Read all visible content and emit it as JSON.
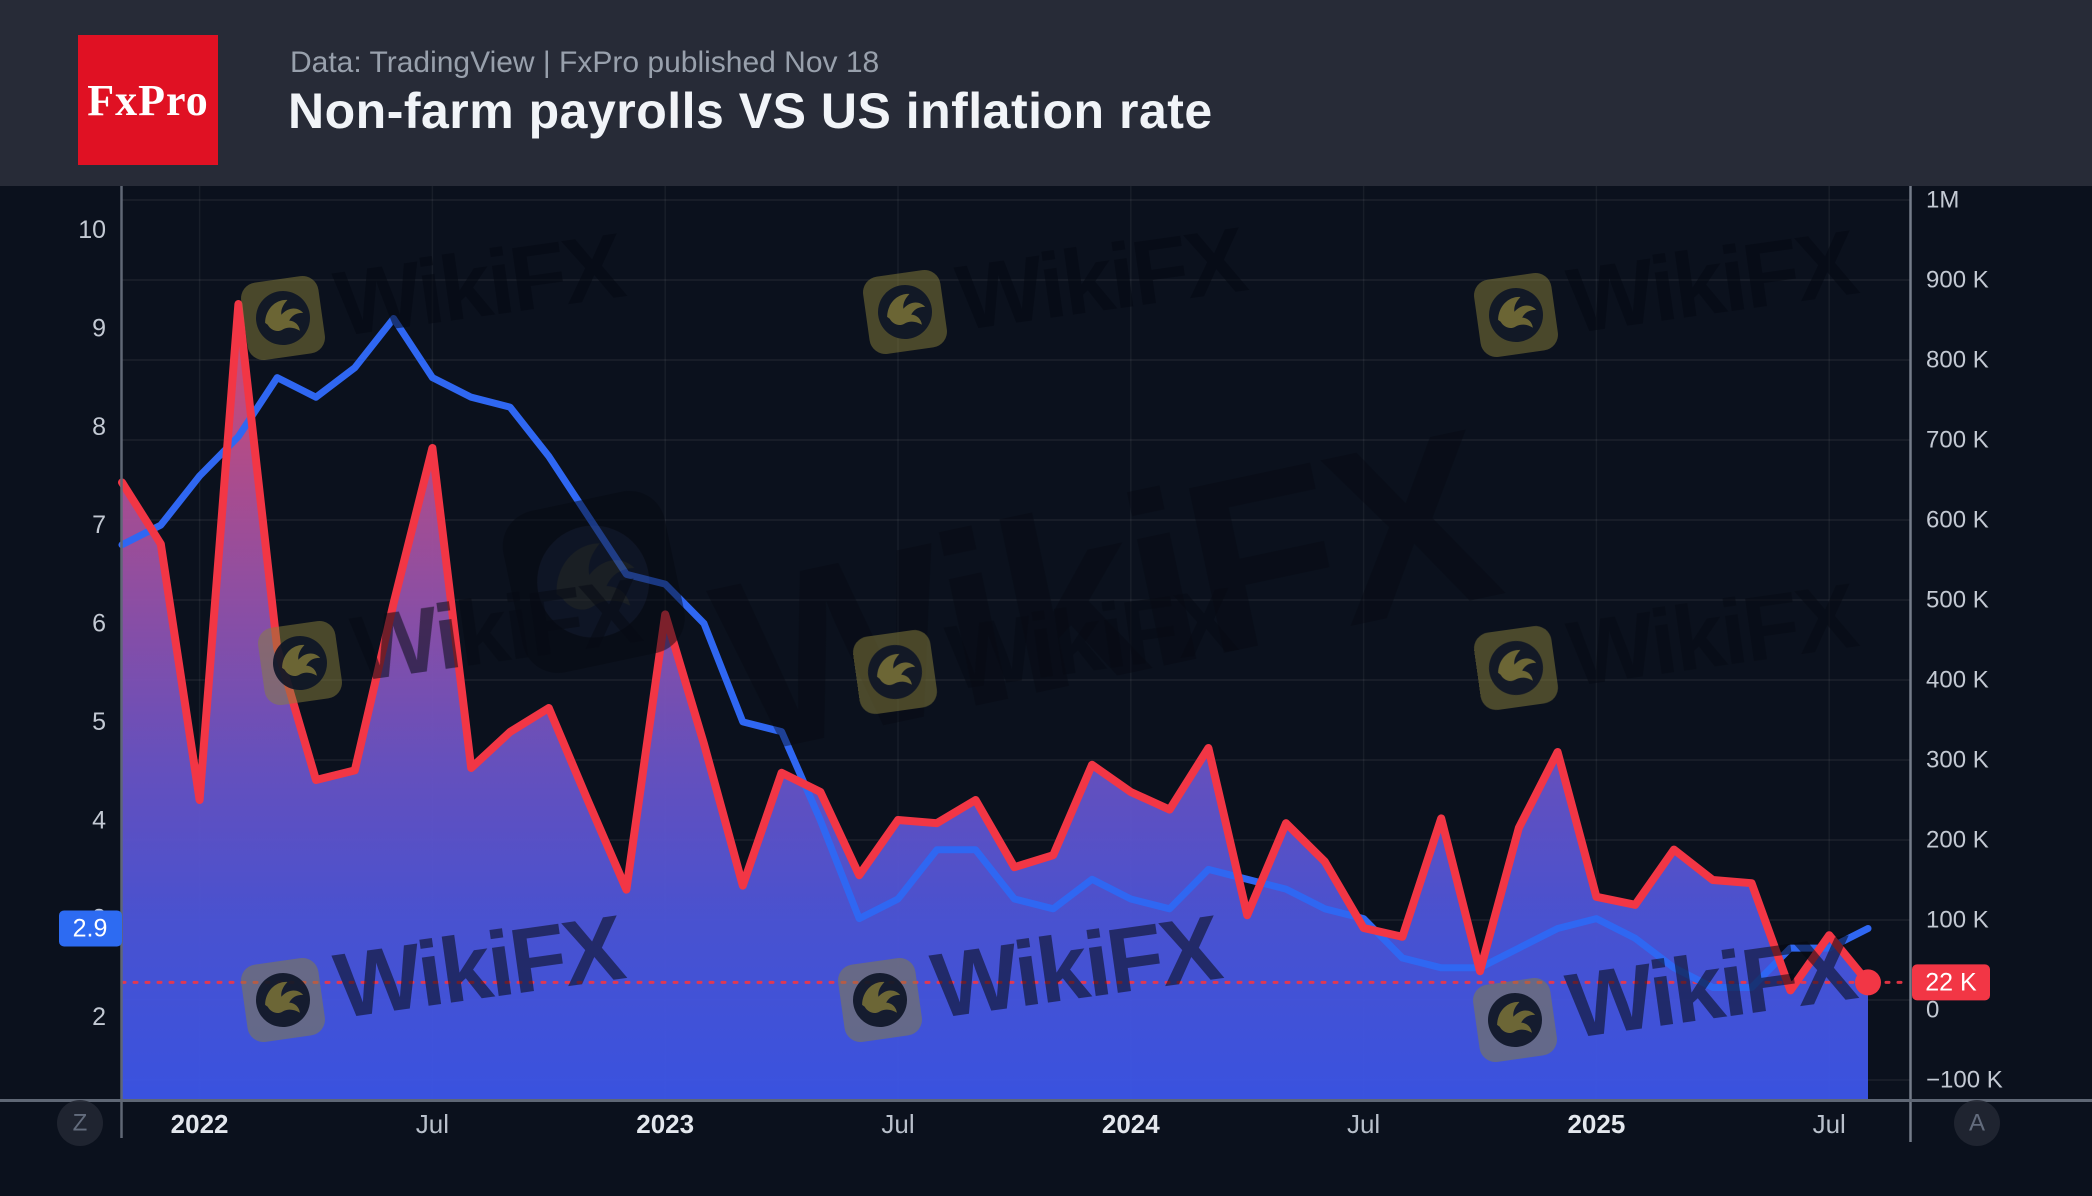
{
  "header": {
    "logo_text": "FxPro",
    "logo_color": "#e01123",
    "subtitle": "Data: TradingView | FxPro published Nov 18",
    "title": "Non-farm payrolls VS US inflation rate"
  },
  "chart_data": {
    "type": "line",
    "title": "Non-farm payrolls VS US inflation rate",
    "grid": true,
    "legend_position": "none",
    "months": [
      "Nov 2021",
      "Dec 2021",
      "Jan 2022",
      "Feb 2022",
      "Mar 2022",
      "Apr 2022",
      "May 2022",
      "Jun 2022",
      "Jul 2022",
      "Aug 2022",
      "Sep 2022",
      "Oct 2022",
      "Nov 2022",
      "Dec 2022",
      "Jan 2023",
      "Feb 2023",
      "Mar 2023",
      "Apr 2023",
      "May 2023",
      "Jun 2023",
      "Jul 2023",
      "Aug 2023",
      "Sep 2023",
      "Oct 2023",
      "Nov 2023",
      "Dec 2023",
      "Jan 2024",
      "Feb 2024",
      "Mar 2024",
      "Apr 2024",
      "May 2024",
      "Jun 2024",
      "Jul 2024",
      "Aug 2024",
      "Sep 2024",
      "Oct 2024",
      "Nov 2024",
      "Dec 2024",
      "Jan 2025",
      "Feb 2025",
      "Mar 2025",
      "Apr 2025",
      "May 2025",
      "Jun 2025",
      "Jul 2025",
      "Aug 2025"
    ],
    "series": [
      {
        "name": "US inflation rate YoY",
        "unit": "%",
        "axis": "left",
        "color": "#2f67f2",
        "style": "line",
        "values": [
          6.8,
          7.0,
          7.5,
          7.9,
          8.5,
          8.3,
          8.6,
          9.1,
          8.5,
          8.3,
          8.2,
          7.7,
          7.1,
          6.5,
          6.4,
          6.0,
          5.0,
          4.9,
          4.0,
          3.0,
          3.2,
          3.7,
          3.7,
          3.2,
          3.1,
          3.4,
          3.2,
          3.1,
          3.5,
          3.4,
          3.3,
          3.1,
          3.0,
          2.6,
          2.5,
          2.5,
          2.7,
          2.9,
          3.0,
          2.8,
          2.5,
          2.3,
          2.3,
          2.7,
          2.7,
          2.9
        ]
      },
      {
        "name": "Non-farm payrolls monthly change",
        "unit": "K",
        "axis": "right",
        "color": "#f23645",
        "style": "area",
        "values": [
          647,
          570,
          250,
          870,
          440,
          275,
          287,
          496,
          690,
          290,
          335,
          365,
          250,
          138,
          482,
          320,
          143,
          284,
          260,
          156,
          225,
          221,
          250,
          166,
          181,
          294,
          260,
          238,
          315,
          106,
          221,
          173,
          90,
          79,
          227,
          36,
          215,
          310,
          129,
          119,
          188,
          150,
          146,
          12,
          81,
          22
        ]
      }
    ],
    "x_labels": [
      {
        "label": "2022",
        "month_index": 2,
        "bold": true
      },
      {
        "label": "Jul",
        "month_index": 8,
        "bold": false
      },
      {
        "label": "2023",
        "month_index": 14,
        "bold": true
      },
      {
        "label": "Jul",
        "month_index": 20,
        "bold": false
      },
      {
        "label": "2024",
        "month_index": 26,
        "bold": true
      },
      {
        "label": "Jul",
        "month_index": 32,
        "bold": false
      },
      {
        "label": "2025",
        "month_index": 38,
        "bold": true
      },
      {
        "label": "Jul",
        "month_index": 44,
        "bold": false
      }
    ],
    "left_axis": {
      "range": [
        2,
        10
      ],
      "ticks": [
        10,
        9,
        8,
        7,
        6,
        5,
        4,
        3,
        2
      ],
      "current": {
        "label": "2.9",
        "value": 2.9,
        "badge_color": "#2d6bf2"
      }
    },
    "right_axis": {
      "range_k": [
        -100,
        1000
      ],
      "ticks": [
        {
          "label": "1M",
          "value_k": 1000
        },
        {
          "label": "900 K",
          "value_k": 900
        },
        {
          "label": "800 K",
          "value_k": 800
        },
        {
          "label": "700 K",
          "value_k": 700
        },
        {
          "label": "600 K",
          "value_k": 600
        },
        {
          "label": "500 K",
          "value_k": 500
        },
        {
          "label": "400 K",
          "value_k": 400
        },
        {
          "label": "300 K",
          "value_k": 300
        },
        {
          "label": "200 K",
          "value_k": 200
        },
        {
          "label": "100 K",
          "value_k": 100
        },
        {
          "label": "0",
          "value_k": 0
        },
        {
          "label": "−100 K",
          "value_k": -100
        }
      ],
      "current": {
        "label": "22 K",
        "value_k": 22,
        "badge_color": "#f23645",
        "dotted_line": true
      }
    }
  },
  "watermark": {
    "text": "WikiFX"
  },
  "corner_buttons": {
    "left": "Z",
    "right": "A"
  },
  "colors": {
    "header_bg": "#272b37",
    "chart_bg": "#0b111d",
    "inflation_line": "#2f67f2",
    "payrolls_line": "#f23645",
    "axis_text": "#c3c9d3",
    "watermark_logo": "#8a7f3a"
  }
}
